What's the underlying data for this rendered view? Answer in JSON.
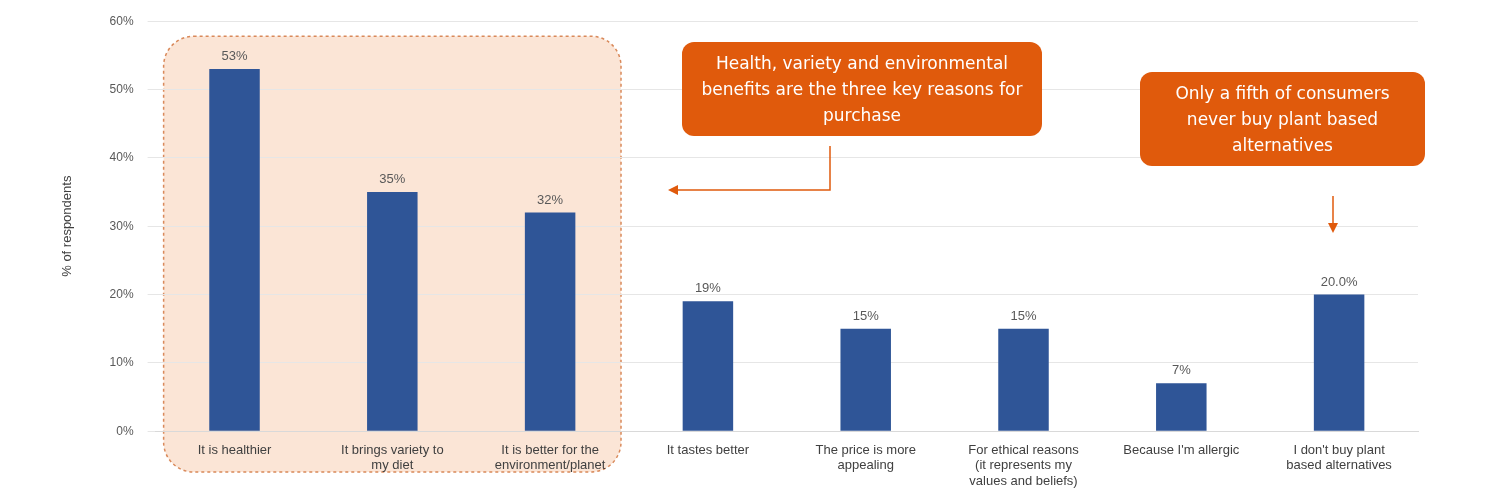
{
  "chart_data": {
    "type": "bar",
    "categories": [
      "It is healthier",
      "It brings variety to my diet",
      "It is better for the environment/planet",
      "It tastes better",
      "The price is more appealing",
      "For ethical reasons (it represents my values and beliefs)",
      "Because I'm allergic",
      "I don't buy plant based alternatives"
    ],
    "values": [
      53,
      35,
      32,
      19,
      15,
      15,
      7,
      20.0
    ],
    "value_labels": [
      "53%",
      "35%",
      "32%",
      "19%",
      "15%",
      "15%",
      "7%",
      "20.0%"
    ],
    "color": "#2f5597",
    "ylabel": "% of respondents",
    "ylim": [
      0,
      60
    ],
    "yticks": [
      {
        "value": 0,
        "label": "0%"
      },
      {
        "value": 10,
        "label": "10%"
      },
      {
        "value": 20,
        "label": "20%"
      },
      {
        "value": 30,
        "label": "30%"
      },
      {
        "value": 40,
        "label": "40%"
      },
      {
        "value": 50,
        "label": "50%"
      },
      {
        "value": 60,
        "label": "60%"
      }
    ],
    "grid": "y",
    "bands": [
      {
        "axis": "x",
        "from": "It is healthier",
        "to": "It is better for the environment/planet",
        "color": "#fbe5d6"
      }
    ],
    "annotations": [
      "Health, variety and environmental benefits are the three key reasons for purchase",
      "Only a fifth of consumers never buy plant based alternatives"
    ]
  }
}
